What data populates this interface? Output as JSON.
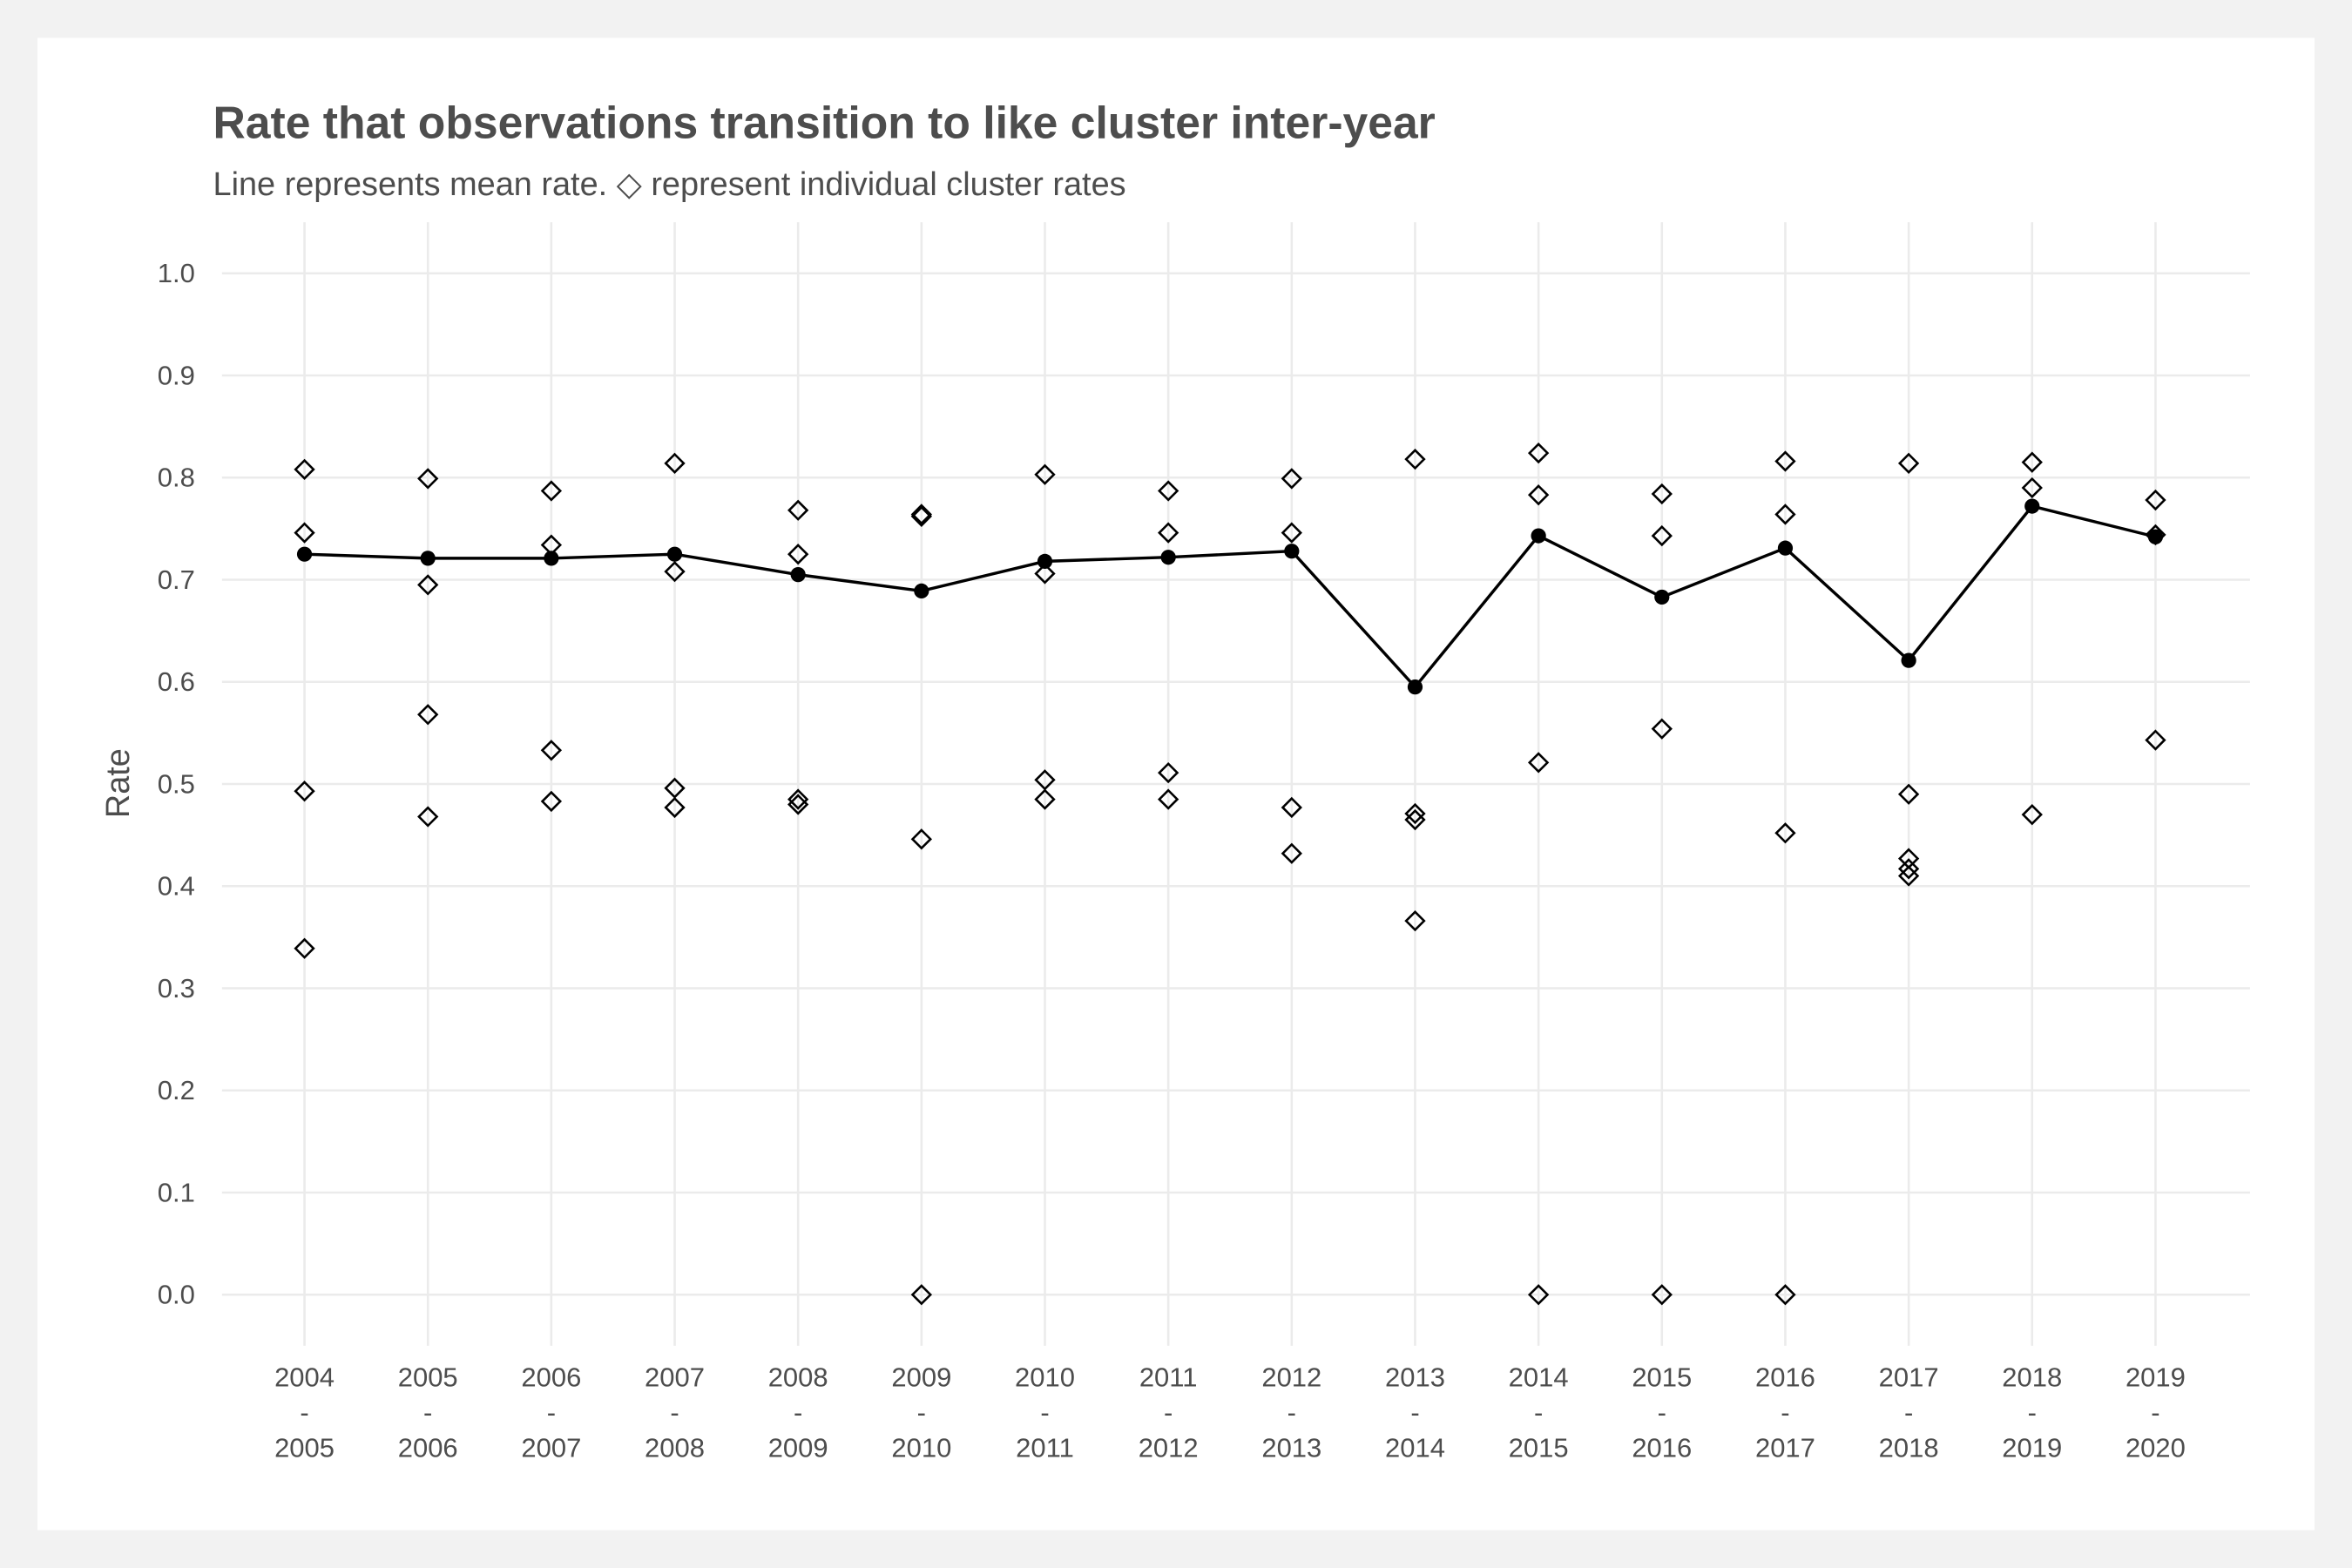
{
  "chart_data": {
    "type": "line",
    "title": "Rate that observations transition to like cluster inter-year",
    "subtitle": "Line represents mean rate. ◇ represent individual cluster rates",
    "y_label": "Rate",
    "categories": [
      [
        "2004",
        "-",
        "2005"
      ],
      [
        "2005",
        "-",
        "2006"
      ],
      [
        "2006",
        "-",
        "2007"
      ],
      [
        "2007",
        "-",
        "2008"
      ],
      [
        "2008",
        "-",
        "2009"
      ],
      [
        "2009",
        "-",
        "2010"
      ],
      [
        "2010",
        "-",
        "2011"
      ],
      [
        "2011",
        "-",
        "2012"
      ],
      [
        "2012",
        "-",
        "2013"
      ],
      [
        "2013",
        "-",
        "2014"
      ],
      [
        "2014",
        "-",
        "2015"
      ],
      [
        "2015",
        "-",
        "2016"
      ],
      [
        "2016",
        "-",
        "2017"
      ],
      [
        "2017",
        "-",
        "2018"
      ],
      [
        "2018",
        "-",
        "2019"
      ],
      [
        "2019",
        "-",
        "2020"
      ]
    ],
    "values": [
      0.725,
      0.721,
      0.721,
      0.725,
      0.705,
      0.689,
      0.718,
      0.722,
      0.728,
      0.595,
      0.743,
      0.683,
      0.731,
      0.621,
      0.772,
      0.742
    ],
    "cluster_rates": [
      [
        0.808,
        0.746,
        0.493,
        0.339
      ],
      [
        0.799,
        0.695,
        0.568,
        0.468
      ],
      [
        0.787,
        0.734,
        0.533,
        0.483
      ],
      [
        0.814,
        0.708,
        0.496,
        0.477
      ],
      [
        0.768,
        0.725,
        0.485,
        0.48
      ],
      [
        0.764,
        0.762,
        0.446,
        0
      ],
      [
        0.803,
        0.706,
        0.504,
        0.485
      ],
      [
        0.787,
        0.746,
        0.511,
        0.485
      ],
      [
        0.799,
        0.746,
        0.477,
        0.432
      ],
      [
        0.818,
        0.471,
        0.465,
        0.366
      ],
      [
        0.824,
        0.783,
        0.521,
        0
      ],
      [
        0.784,
        0.743,
        0.554,
        0
      ],
      [
        0.816,
        0.764,
        0.452,
        0
      ],
      [
        0.814,
        0.49,
        0.427,
        0.417,
        0.41
      ],
      [
        0.815,
        0.79,
        0.47
      ],
      [
        0.778,
        0.744,
        0.543
      ]
    ],
    "color": "#000000",
    "ylim": [
      -0.05,
      1.05
    ],
    "yticks": [
      {
        "value": 0,
        "label": "0.0"
      },
      0.1,
      0.2,
      0.3,
      0.4,
      0.5,
      0.6,
      0.7,
      0.8,
      0.9,
      {
        "value": 1,
        "label": "1.0"
      }
    ],
    "grid": true
  }
}
